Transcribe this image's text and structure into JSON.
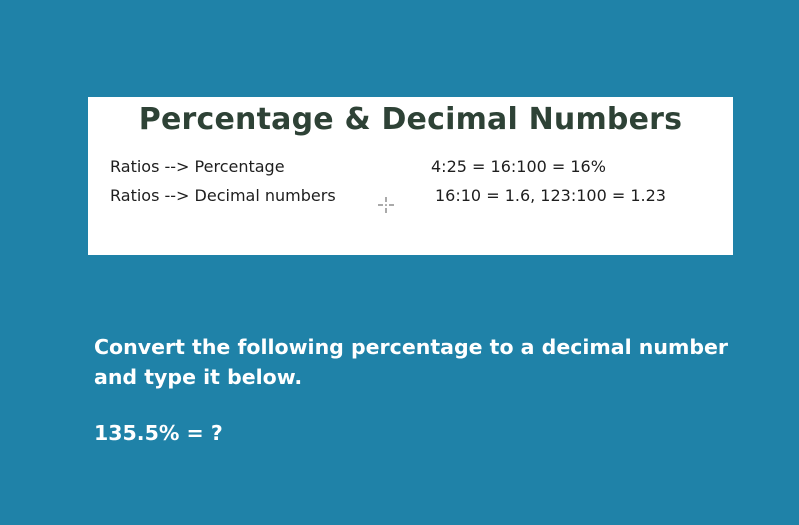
{
  "card": {
    "title": "Percentage & Decimal Numbers",
    "rows": [
      {
        "left": "Ratios  --> Percentage",
        "right": "4:25 = 16:100  = 16%"
      },
      {
        "left": "Ratios  --> Decimal numbers",
        "right": "16:10 = 1.6,    123:100 = 1.23"
      }
    ],
    "cursor_icon": "crosshair-icon"
  },
  "prompt": {
    "instruction": "Convert the following percentage to a decimal number and type it below.",
    "question": "135.5% = ?"
  },
  "colors": {
    "background": "#1f82a8",
    "card": "#ffffff",
    "title": "#2e4236",
    "prompt_text": "#ffffff"
  }
}
